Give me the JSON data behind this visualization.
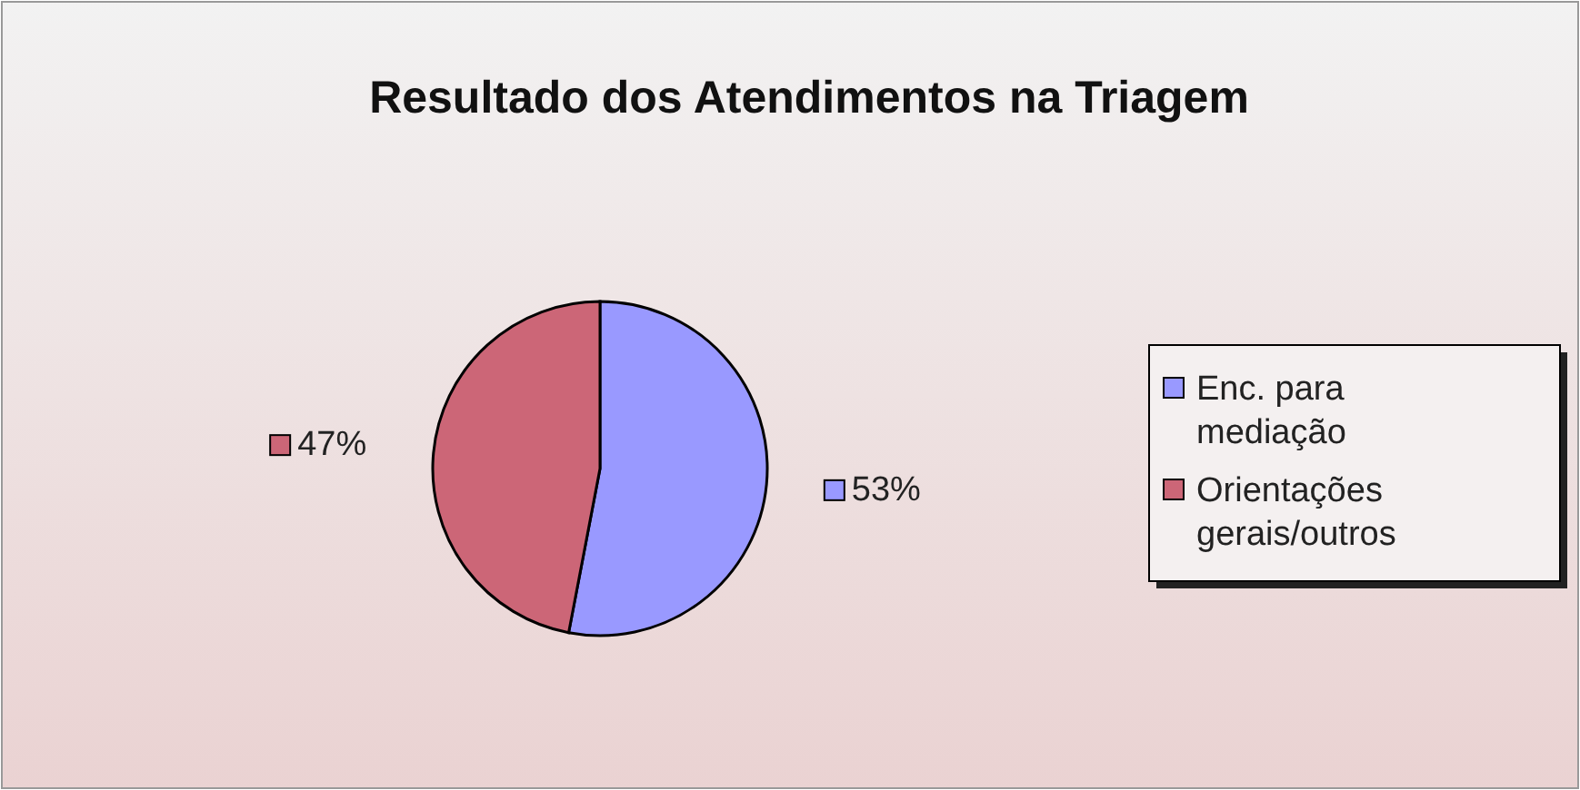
{
  "chart_data": {
    "type": "pie",
    "title": "Resultado dos Atendimentos na Triagem",
    "categories": [
      "Enc. para mediação",
      "Orientações gerais/outros"
    ],
    "values": [
      53,
      47
    ],
    "colors": [
      "#9999ff",
      "#cc6677"
    ],
    "value_labels": [
      "53%",
      "47%"
    ],
    "legend": "right"
  }
}
